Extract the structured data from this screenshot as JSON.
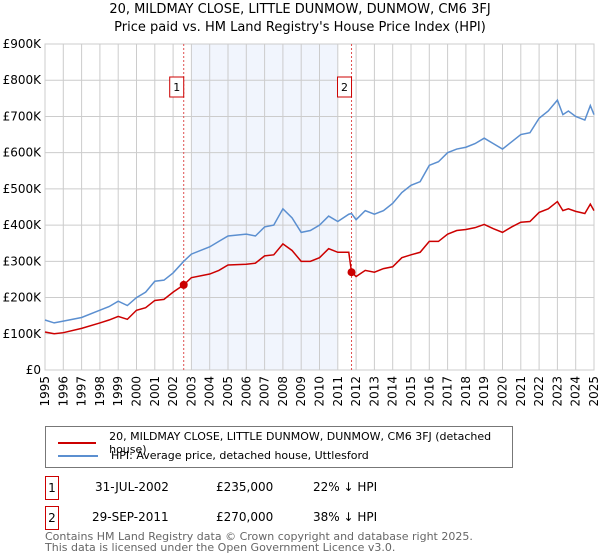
{
  "chart_data": {
    "type": "line",
    "title": "20, MILDMAY CLOSE, LITTLE DUNMOW, DUNMOW, CM6 3FJ",
    "subtitle": "Price paid vs. HM Land Registry's House Price Index (HPI)",
    "ylim": [
      0,
      900000
    ],
    "xlim": [
      1995,
      2025
    ],
    "yticks": [
      {
        "v": 0,
        "label": "£0"
      },
      {
        "v": 100000,
        "label": "£100K"
      },
      {
        "v": 200000,
        "label": "£200K"
      },
      {
        "v": 300000,
        "label": "£300K"
      },
      {
        "v": 400000,
        "label": "£400K"
      },
      {
        "v": 500000,
        "label": "£500K"
      },
      {
        "v": 600000,
        "label": "£600K"
      },
      {
        "v": 700000,
        "label": "£700K"
      },
      {
        "v": 800000,
        "label": "£800K"
      },
      {
        "v": 900000,
        "label": "£900K"
      }
    ],
    "xticks": [
      "1995",
      "1996",
      "1997",
      "1998",
      "1999",
      "2000",
      "2001",
      "2002",
      "2003",
      "2004",
      "2005",
      "2006",
      "2007",
      "2008",
      "2009",
      "2010",
      "2011",
      "2012",
      "2013",
      "2014",
      "2015",
      "2016",
      "2017",
      "2018",
      "2019",
      "2020",
      "2021",
      "2022",
      "2023",
      "2024",
      "2025"
    ],
    "grid": true,
    "shaded_range": [
      2003,
      2011
    ],
    "series": [
      {
        "name": "20, MILDMAY CLOSE, LITTLE DUNMOW, DUNMOW, CM6 3FJ (detached house)",
        "color": "#cc0000",
        "x": [
          1995,
          1995.5,
          1996,
          1997,
          1998,
          1998.5,
          1999,
          1999.5,
          2000,
          2000.5,
          2001,
          2001.5,
          2002,
          2002.58,
          2003,
          2004,
          2004.5,
          2005,
          2006,
          2006.5,
          2007,
          2007.5,
          2008,
          2008.5,
          2009,
          2009.5,
          2010,
          2010.5,
          2011,
          2011.6,
          2011.75,
          2012,
          2012.5,
          2013,
          2013.5,
          2014,
          2014.5,
          2015,
          2015.5,
          2016,
          2016.5,
          2017,
          2017.5,
          2018,
          2018.5,
          2019,
          2019.5,
          2020,
          2020.5,
          2021,
          2021.5,
          2022,
          2022.5,
          2023,
          2023.3,
          2023.6,
          2024,
          2024.5,
          2024.8,
          2025
        ],
        "y": [
          105000,
          100000,
          103000,
          115000,
          130000,
          138000,
          148000,
          140000,
          165000,
          172000,
          192000,
          195000,
          215000,
          235000,
          255000,
          265000,
          275000,
          290000,
          292000,
          295000,
          315000,
          318000,
          348000,
          330000,
          300000,
          300000,
          310000,
          335000,
          325000,
          325000,
          270000,
          258000,
          275000,
          270000,
          280000,
          285000,
          310000,
          318000,
          325000,
          355000,
          355000,
          375000,
          385000,
          388000,
          393000,
          402000,
          390000,
          380000,
          395000,
          408000,
          410000,
          435000,
          445000,
          465000,
          440000,
          445000,
          438000,
          432000,
          458000,
          440000
        ]
      },
      {
        "name": "HPI: Average price, detached house, Uttlesford",
        "color": "#5b8fd0",
        "x": [
          1995,
          1995.5,
          1996,
          1997,
          1998,
          1998.5,
          1999,
          1999.5,
          2000,
          2000.5,
          2001,
          2001.5,
          2002,
          2002.58,
          2003,
          2004,
          2004.5,
          2005,
          2006,
          2006.5,
          2007,
          2007.5,
          2008,
          2008.5,
          2009,
          2009.5,
          2010,
          2010.5,
          2011,
          2011.6,
          2011.75,
          2012,
          2012.5,
          2013,
          2013.5,
          2014,
          2014.5,
          2015,
          2015.5,
          2016,
          2016.5,
          2017,
          2017.5,
          2018,
          2018.5,
          2019,
          2019.5,
          2020,
          2020.5,
          2021,
          2021.5,
          2022,
          2022.5,
          2023,
          2023.3,
          2023.6,
          2024,
          2024.5,
          2024.8,
          2025
        ],
        "y": [
          138000,
          130000,
          135000,
          145000,
          165000,
          175000,
          190000,
          178000,
          200000,
          215000,
          245000,
          248000,
          268000,
          300000,
          320000,
          340000,
          355000,
          370000,
          375000,
          370000,
          395000,
          400000,
          445000,
          420000,
          380000,
          385000,
          400000,
          425000,
          410000,
          430000,
          432000,
          415000,
          440000,
          430000,
          440000,
          460000,
          490000,
          510000,
          520000,
          565000,
          575000,
          600000,
          610000,
          615000,
          625000,
          640000,
          625000,
          610000,
          630000,
          650000,
          655000,
          695000,
          715000,
          745000,
          705000,
          715000,
          700000,
          690000,
          730000,
          705000
        ]
      }
    ],
    "annotations": [
      {
        "label": "1",
        "x": 2002.58,
        "y": 235000
      },
      {
        "label": "2",
        "x": 2011.75,
        "y": 270000
      }
    ]
  },
  "transactions": [
    {
      "num": "1",
      "date": "31-JUL-2002",
      "price": "£235,000",
      "hpi": "22% ↓ HPI"
    },
    {
      "num": "2",
      "date": "29-SEP-2011",
      "price": "£270,000",
      "hpi": "38% ↓ HPI"
    }
  ],
  "footer": {
    "line1": "Contains HM Land Registry data © Crown copyright and database right 2025.",
    "line2": "This data is licensed under the Open Government Licence v3.0."
  }
}
